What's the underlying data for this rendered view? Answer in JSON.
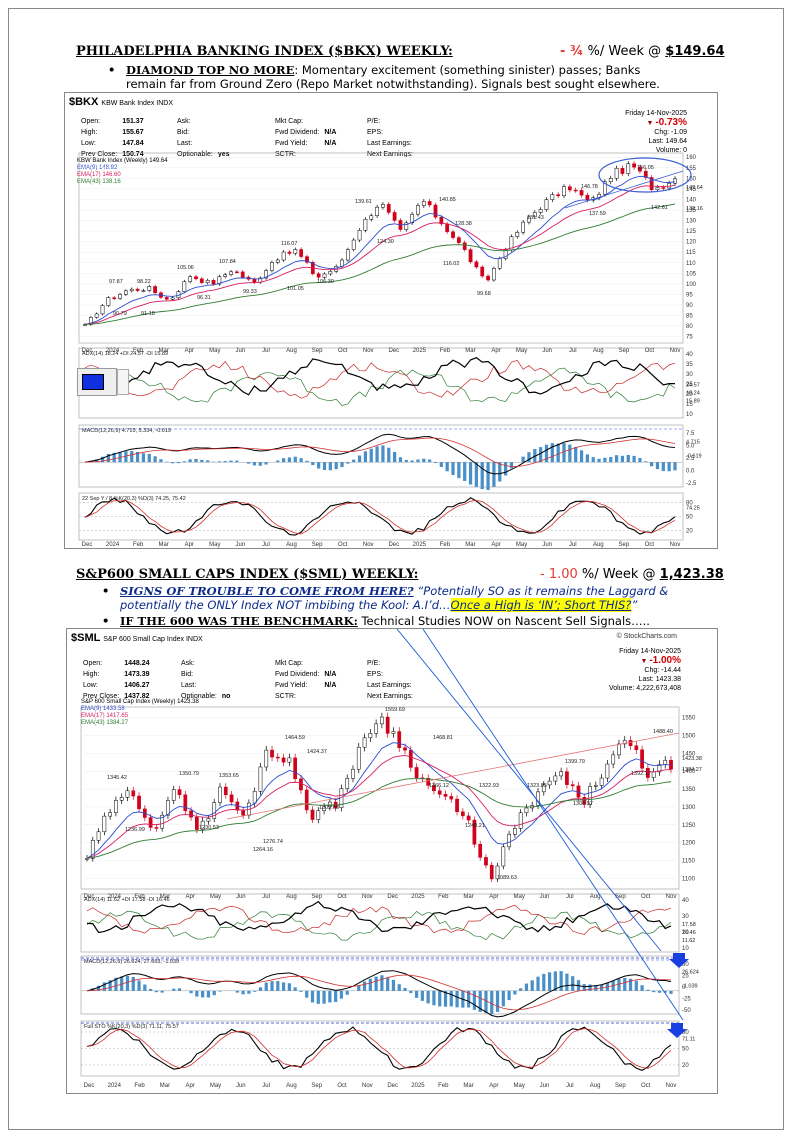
{
  "section1": {
    "title": "PHILADELPHIA BANKING INDEX ($BKX) WEEKLY:",
    "change": "- ¾",
    "change_suffix": " %/ Week @ ",
    "price": "$149.64",
    "bullet_head": "DIAMOND TOP NO MORE",
    "bullet_text_line1": ": Momentary excitement (something sinister) passes; Banks",
    "bullet_text_line2": "remain far from Ground Zero (Repo Market notwithstanding). Signals best sought elsewhere."
  },
  "section2": {
    "title": "S&P600 SMALL CAPS INDEX ($SML) WEEKLY:",
    "change": "- 1.00",
    "change_suffix": " %/ Week @ ",
    "price": "1,423.38",
    "bullet1_head": "SIGNS OF TROUBLE TO COME FROM HERE?",
    "bullet1_text_a": " “Potentially SO as it remains the Laggard &",
    "bullet1_text_b": "potentially the ONLY Index NOT imbibing the Kool: A.I’d…",
    "bullet1_highlight": "Once a High is ‘IN’; Short THIS?",
    "bullet1_end": "”",
    "bullet2_head": "IF THE 600 WAS THE BENCHMARK:",
    "bullet2_text": " Technical Studies NOW on Nascent Sell Signals….."
  },
  "chart1": {
    "symbol": "$BKX",
    "name": "KBW Bank Index  INDX",
    "quote_left": [
      [
        "Open:",
        "151.37"
      ],
      [
        "High:",
        "155.67"
      ],
      [
        "Low:",
        "147.84"
      ],
      [
        "Prev Close:",
        "150.74"
      ]
    ],
    "quote_mid1": [
      [
        "Ask:",
        ""
      ],
      [
        "Bid:",
        ""
      ],
      [
        "Last:",
        ""
      ],
      [
        "Optionable:",
        "yes"
      ]
    ],
    "quote_mid2": [
      [
        "Mkt Cap:",
        ""
      ],
      [
        "Fwd Dividend:",
        "N/A"
      ],
      [
        "Fwd Yield:",
        "N/A"
      ],
      [
        "SCTR:",
        ""
      ]
    ],
    "quote_mid3": [
      [
        "P/E:",
        ""
      ],
      [
        "EPS:",
        ""
      ],
      [
        "Last Earnings:",
        ""
      ],
      [
        "Next Earnings:",
        ""
      ]
    ],
    "date": "Friday  14-Nov-2025",
    "pct": "-0.73%",
    "chg_label": "Chg:",
    "chg": "-1.09",
    "last_label": "Last:",
    "last": "149.64",
    "vol_label": "Volume:",
    "vol": "0",
    "legend": [
      "KBW Bank Index (Weekly) 149.64",
      "EMA(9) 148.92",
      "EMA(17) 146.60",
      "EMA(43) 138.16"
    ],
    "price_labels": [
      "97.87",
      "98.22",
      "90.79",
      "91.18",
      "105.06",
      "96.31",
      "107.84",
      "99.33",
      "116.07",
      "101.05",
      "106.30",
      "139.61",
      "124.30",
      "140.85",
      "128.38",
      "116.02",
      "99.68",
      "131.43",
      "146.78",
      "137.59",
      "156.05",
      "142.81"
    ],
    "yticks": [
      "160",
      "155",
      "150",
      "145",
      "140",
      "135",
      "130",
      "125",
      "120",
      "115",
      "110",
      "105",
      "100",
      "95",
      "90",
      "85",
      "80",
      "75"
    ],
    "tag_last": "149.64",
    "tag_ema": "138.16",
    "adx_label": "ADX(14) 18.24 +DI 24.57 -DI 15.89",
    "adx_ticks": [
      "40",
      "35",
      "30",
      "25",
      "20",
      "15",
      "10"
    ],
    "adx_tags": [
      "24.57",
      "18.24",
      "15.89"
    ],
    "macd_label": "MACD(12,26,9) 4.715, 5.334, -0.619",
    "macd_ticks": [
      "7.5",
      "5.0",
      "2.5",
      "0.0",
      "-2.5"
    ],
    "macd_tags": [
      "4.715",
      "-0.619"
    ],
    "sto_label": "22 Sep Y  / 8  %K(20,3) %D(3) 74.25, 75.42",
    "sto_ticks": [
      "80",
      "50",
      "20"
    ],
    "sto_tag": "74.25",
    "months": [
      "Dec",
      "2024",
      "Feb",
      "Mar",
      "Apr",
      "May",
      "Jun",
      "Jul",
      "Aug",
      "Sep",
      "Oct",
      "Nov",
      "Dec",
      "2025",
      "Feb",
      "Mar",
      "Apr",
      "May",
      "Jun",
      "Jul",
      "Aug",
      "Sep",
      "Oct",
      "Nov"
    ]
  },
  "chart2": {
    "symbol": "$SML",
    "name": "S&P 600 Small Cap Index  INDX",
    "credit": "© StockCharts.com",
    "quote_left": [
      [
        "Open:",
        "1448.24"
      ],
      [
        "High:",
        "1473.39"
      ],
      [
        "Low:",
        "1406.27"
      ],
      [
        "Prev Close:",
        "1437.82"
      ]
    ],
    "quote_mid1": [
      [
        "Ask:",
        ""
      ],
      [
        "Bid:",
        ""
      ],
      [
        "Last:",
        ""
      ],
      [
        "Optionable:",
        "no"
      ]
    ],
    "quote_mid2": [
      [
        "Mkt Cap:",
        ""
      ],
      [
        "Fwd Dividend:",
        "N/A"
      ],
      [
        "Fwd Yield:",
        "N/A"
      ],
      [
        "SCTR:",
        ""
      ]
    ],
    "quote_mid3": [
      [
        "P/E:",
        ""
      ],
      [
        "EPS:",
        ""
      ],
      [
        "Last Earnings:",
        ""
      ],
      [
        "Next Earnings:",
        ""
      ]
    ],
    "date": "Friday  14-Nov-2025",
    "pct": "-1.00%",
    "chg_label": "Chg:",
    "chg": "-14.44",
    "last_label": "Last:",
    "last": "1423.38",
    "vol_label": "Volume:",
    "vol": "4,222,673,408",
    "legend": [
      "S&P 600 Small Cap Index (Weekly) 1423.38",
      "EMA(9) 1433.58",
      "EMA(17) 1417.65",
      "EMA(43) 1384.27"
    ],
    "price_labels": [
      "1345.42",
      "1236.99",
      "1350.79",
      "1230.53",
      "1353.65",
      "1264.16",
      "1464.59",
      "1424.37",
      "1276.74",
      "1303.68",
      "1559.69",
      "1468.81",
      "1366.12",
      "1322.93",
      "1248.21",
      "1089.63",
      "1323.85",
      "1399.79",
      "1306.97",
      "1488.40",
      "1392.17"
    ],
    "yticks": [
      "1550",
      "1500",
      "1450",
      "1400",
      "1350",
      "1300",
      "1250",
      "1200",
      "1150",
      "1100"
    ],
    "tag_last": "1423.38",
    "tag_ema": "1384.27",
    "adx_label": "ADX(14) 11.62 +DI 17.58 -DI 16.46",
    "adx_ticks": [
      "40",
      "30",
      "20",
      "10"
    ],
    "adx_tags": [
      "17.58",
      "16.46",
      "11.62"
    ],
    "macd_label": "MACD(12,26,9) 26.624, 27.663, -1.039",
    "macd_ticks": [
      "50",
      "25",
      "0",
      "-25",
      "-50"
    ],
    "macd_tags": [
      "26.624",
      "-1.039"
    ],
    "sto_label": "Full STO %K(20,3) %D(3) 71.11, 75.57",
    "sto_ticks": [
      "80",
      "50",
      "20"
    ],
    "sto_tag": "71.11",
    "months": [
      "Dec",
      "2024",
      "Feb",
      "Mar",
      "Apr",
      "May",
      "Jun",
      "Jul",
      "Aug",
      "Sep",
      "Oct",
      "Nov",
      "Dec",
      "2025",
      "Feb",
      "Mar",
      "Apr",
      "May",
      "Jun",
      "Jul",
      "Aug",
      "Sep",
      "Oct",
      "Nov"
    ]
  },
  "colors": {
    "candle_up": "#ffffff",
    "candle_down": "#d0021b",
    "ema_fast": "#2b4bd1",
    "ema_mid": "#d81b60",
    "ema_slow": "#2e7d32",
    "annot": "#1e5bd8"
  }
}
